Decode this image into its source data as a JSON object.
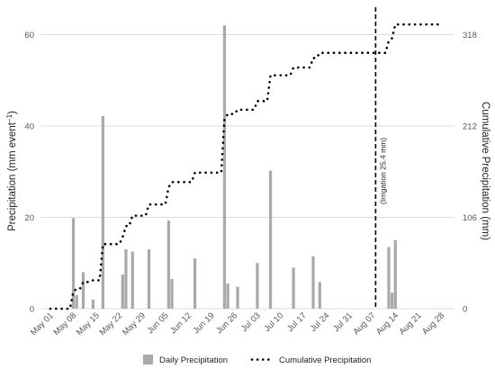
{
  "chart_data": {
    "type": "bar+line",
    "x_type": "date",
    "x_ticks": [
      "May 01",
      "May 08",
      "May 15",
      "May 22",
      "May 29",
      "Jun 05",
      "Jun 12",
      "Jun 19",
      "Jun 26",
      "Jul 03",
      "Jul 10",
      "Jul 17",
      "Jul 24",
      "Jul 31",
      "Aug 07",
      "Aug 14",
      "Aug 21",
      "Aug 28"
    ],
    "x_tick_dates": [
      "2000-05-01",
      "2000-05-08",
      "2000-05-15",
      "2000-05-22",
      "2000-05-29",
      "2000-06-05",
      "2000-06-12",
      "2000-06-19",
      "2000-06-26",
      "2000-07-03",
      "2000-07-10",
      "2000-07-17",
      "2000-07-24",
      "2000-07-31",
      "2000-08-07",
      "2000-08-14",
      "2000-08-21",
      "2000-08-28"
    ],
    "xlim": [
      "2000-04-27",
      "2000-08-31"
    ],
    "y_left": {
      "label_prefix": "Precipitation (mm event",
      "label_sup": "−1",
      "label_suffix": ")",
      "ticks": [
        0,
        20,
        40,
        60
      ],
      "ylim": [
        0,
        66
      ]
    },
    "y_right": {
      "label": "Cumulative Precipitation (mm)",
      "ticks": [
        0,
        106,
        212,
        318
      ],
      "ylim": [
        0,
        350
      ]
    },
    "series": [
      {
        "name": "Daily Precipitation",
        "type": "bar",
        "color": "#a9a9a9",
        "points": [
          {
            "date": "2000-05-07",
            "value": 19.8
          },
          {
            "date": "2000-05-08",
            "value": 3.0
          },
          {
            "date": "2000-05-10",
            "value": 8.0
          },
          {
            "date": "2000-05-13",
            "value": 2.0
          },
          {
            "date": "2000-05-16",
            "value": 42.2
          },
          {
            "date": "2000-05-22",
            "value": 7.5
          },
          {
            "date": "2000-05-23",
            "value": 13.0
          },
          {
            "date": "2000-05-25",
            "value": 12.5
          },
          {
            "date": "2000-05-30",
            "value": 13.0
          },
          {
            "date": "2000-06-05",
            "value": 19.3
          },
          {
            "date": "2000-06-06",
            "value": 6.5
          },
          {
            "date": "2000-06-13",
            "value": 11.0
          },
          {
            "date": "2000-06-22",
            "value": 62.0
          },
          {
            "date": "2000-06-23",
            "value": 5.5
          },
          {
            "date": "2000-06-26",
            "value": 4.8
          },
          {
            "date": "2000-07-02",
            "value": 10.0
          },
          {
            "date": "2000-07-06",
            "value": 30.2
          },
          {
            "date": "2000-07-13",
            "value": 9.0
          },
          {
            "date": "2000-07-19",
            "value": 11.5
          },
          {
            "date": "2000-07-21",
            "value": 5.8
          },
          {
            "date": "2000-08-11",
            "value": 13.5
          },
          {
            "date": "2000-08-12",
            "value": 3.5
          },
          {
            "date": "2000-08-13",
            "value": 15.0
          }
        ]
      },
      {
        "name": "Cumulative Precipitation",
        "type": "line",
        "style": "dotted",
        "color": "#000000",
        "points": [
          {
            "date": "2000-04-30",
            "value": 0
          },
          {
            "date": "2000-05-06",
            "value": 0
          },
          {
            "date": "2000-05-07",
            "value": 20
          },
          {
            "date": "2000-05-08",
            "value": 23
          },
          {
            "date": "2000-05-10",
            "value": 31
          },
          {
            "date": "2000-05-13",
            "value": 33
          },
          {
            "date": "2000-05-16",
            "value": 75
          },
          {
            "date": "2000-05-22",
            "value": 83
          },
          {
            "date": "2000-05-23",
            "value": 96
          },
          {
            "date": "2000-05-25",
            "value": 108
          },
          {
            "date": "2000-05-30",
            "value": 121
          },
          {
            "date": "2000-06-05",
            "value": 141
          },
          {
            "date": "2000-06-06",
            "value": 147
          },
          {
            "date": "2000-06-13",
            "value": 158
          },
          {
            "date": "2000-06-22",
            "value": 220
          },
          {
            "date": "2000-06-23",
            "value": 226
          },
          {
            "date": "2000-06-26",
            "value": 231
          },
          {
            "date": "2000-07-02",
            "value": 241
          },
          {
            "date": "2000-07-06",
            "value": 271
          },
          {
            "date": "2000-07-13",
            "value": 280
          },
          {
            "date": "2000-07-19",
            "value": 291
          },
          {
            "date": "2000-07-21",
            "value": 297
          },
          {
            "date": "2000-08-07",
            "value": 297
          },
          {
            "date": "2000-08-11",
            "value": 311
          },
          {
            "date": "2000-08-12",
            "value": 314
          },
          {
            "date": "2000-08-13",
            "value": 330
          },
          {
            "date": "2000-08-26",
            "value": 330
          }
        ]
      }
    ],
    "annotations": [
      {
        "type": "vline",
        "style": "dashed",
        "date": "2000-08-07",
        "label": "(Irrigation 25.4 mm)"
      }
    ],
    "grid": "horizontal",
    "legend": {
      "position": "bottom",
      "items": [
        {
          "label": "Daily Precipitation",
          "symbol": "bar"
        },
        {
          "label": "Cumulative Precipitation",
          "symbol": "dotted-line"
        }
      ]
    }
  }
}
